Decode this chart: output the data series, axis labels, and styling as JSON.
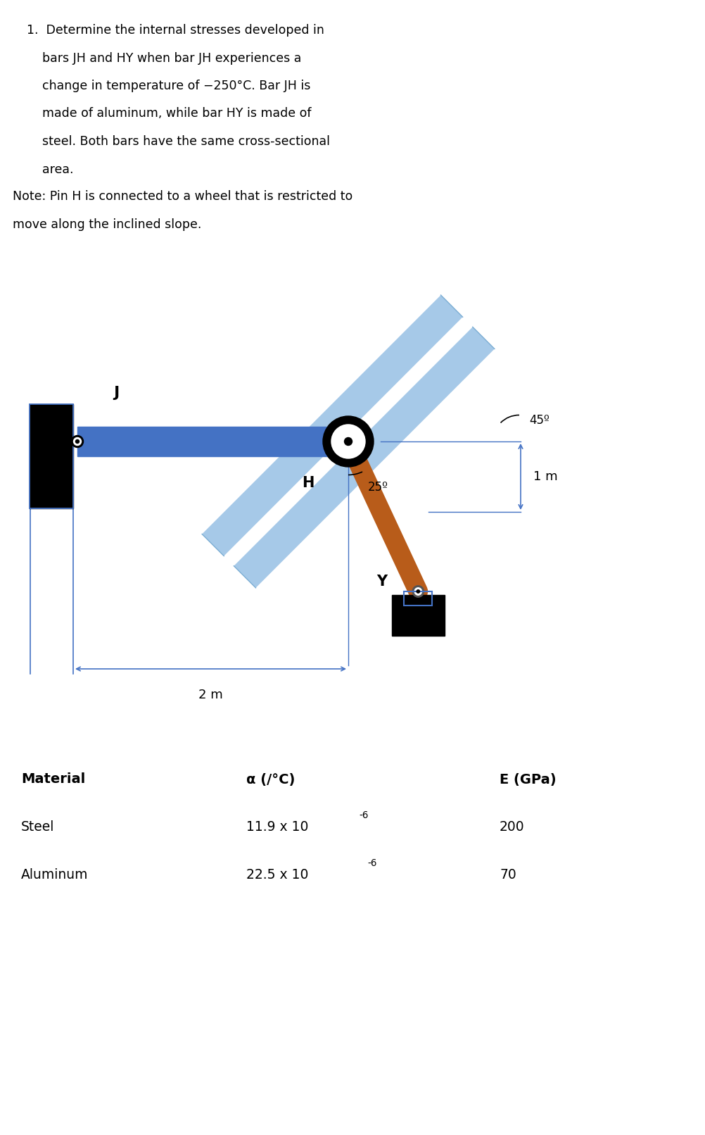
{
  "bg_color": "#ffffff",
  "text_color": "#000000",
  "problem_line1": "1.  Determine the internal stresses developed in",
  "problem_line2": "    bars JH and HY when bar JH experiences a",
  "problem_line3": "    change in temperature of −250°C. Bar JH is",
  "problem_line4": "    made of aluminum, while bar HY is made of",
  "problem_line5": "    steel. Both bars have the same cross-sectional",
  "problem_line6": "    area.",
  "note_line1": "Note: Pin H is connected to a wheel that is restricted to",
  "note_line2": "move along the inclined slope.",
  "bar_jh_color": "#4472C4",
  "bar_hy_color": "#B85C1A",
  "slope_color": "#9DC3E6",
  "slope_dark_color": "#7BADD3",
  "dim_color": "#4472C4",
  "black": "#000000",
  "white": "#ffffff",
  "angle_45": "45º",
  "angle_25": "25º",
  "label_1m": "1 m",
  "label_2m": "2 m",
  "label_J": "J",
  "label_H": "H",
  "label_Y": "Y",
  "tbl_h1": "Material",
  "tbl_h2": "α (/°C)",
  "tbl_h3": "E (GPa)",
  "tbl_r1c1": "Steel",
  "tbl_r1c2": "11.9 x 10",
  "tbl_r1c2_sup": "-6",
  "tbl_r1c3": "200",
  "tbl_r2c1": "Aluminum",
  "tbl_r2c2": "22.5 x 10",
  "tbl_r2c2_sup": "-6",
  "tbl_r2c3": "70",
  "fig_width": 10.03,
  "fig_height": 16.12,
  "dpi": 100
}
